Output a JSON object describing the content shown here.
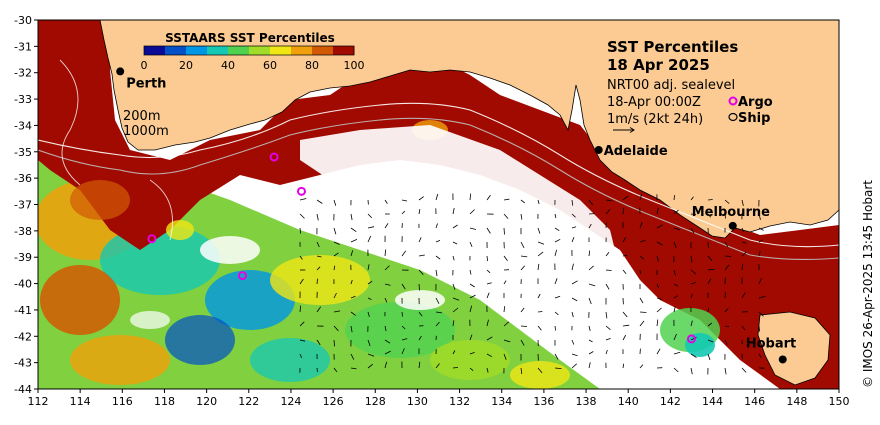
{
  "map": {
    "title": "SST Percentiles",
    "date": "18 Apr 2025",
    "product": "NRT00 adj. sealevel",
    "time": "18-Apr 00:00Z",
    "vector_scale": "1m/s (2kt 24h)",
    "credit": "© IMOS 26-Apr-2025 13:45 Hobart"
  },
  "colorbar": {
    "title": "SSTAARS SST Percentiles",
    "ticks": [
      "0",
      "20",
      "40",
      "60",
      "80",
      "100"
    ],
    "colors": [
      "#0a0a96",
      "#0050c8",
      "#0096e6",
      "#14c8b4",
      "#50d250",
      "#a0dc28",
      "#f0e614",
      "#f0a00a",
      "#d25a05",
      "#a00a00"
    ]
  },
  "legend": {
    "depth_200": "200m",
    "depth_1000": "1000m",
    "argo": "Argo",
    "ship": "Ship"
  },
  "cities": {
    "perth": "Perth",
    "adelaide": "Adelaide",
    "melbourne": "Melbourne",
    "hobart": "Hobart"
  },
  "axes": {
    "lon_ticks": [
      "112",
      "114",
      "116",
      "118",
      "120",
      "122",
      "124",
      "126",
      "128",
      "130",
      "132",
      "134",
      "136",
      "138",
      "140",
      "142",
      "144",
      "146",
      "148",
      "150"
    ],
    "lat_ticks": [
      "-30",
      "-31",
      "-32",
      "-33",
      "-34",
      "-35",
      "-36",
      "-37",
      "-38",
      "-39",
      "-40",
      "-41",
      "-42",
      "-43",
      "-44"
    ],
    "lon_range": [
      112,
      150
    ],
    "lat_range": [
      -44,
      -30
    ]
  },
  "argo_floats": [
    {
      "lon": 123.2,
      "lat": -35.2
    },
    {
      "lon": 124.5,
      "lat": -36.5
    },
    {
      "lon": 117.4,
      "lat": -38.3
    },
    {
      "lon": 121.7,
      "lat": -39.7
    },
    {
      "lon": 143.0,
      "lat": -42.1
    }
  ],
  "city_positions": {
    "perth": {
      "lon": 115.9,
      "lat": -31.95
    },
    "adelaide": {
      "lon": 138.6,
      "lat": -34.93
    },
    "melbourne": {
      "lon": 144.96,
      "lat": -37.81
    },
    "hobart": {
      "lon": 147.33,
      "lat": -42.88
    }
  },
  "colors": {
    "land": "#fbcb93",
    "ocean_warm": "#a00a00",
    "ocean_nodata": "#ffffff",
    "argo_marker": "#e600e6"
  }
}
